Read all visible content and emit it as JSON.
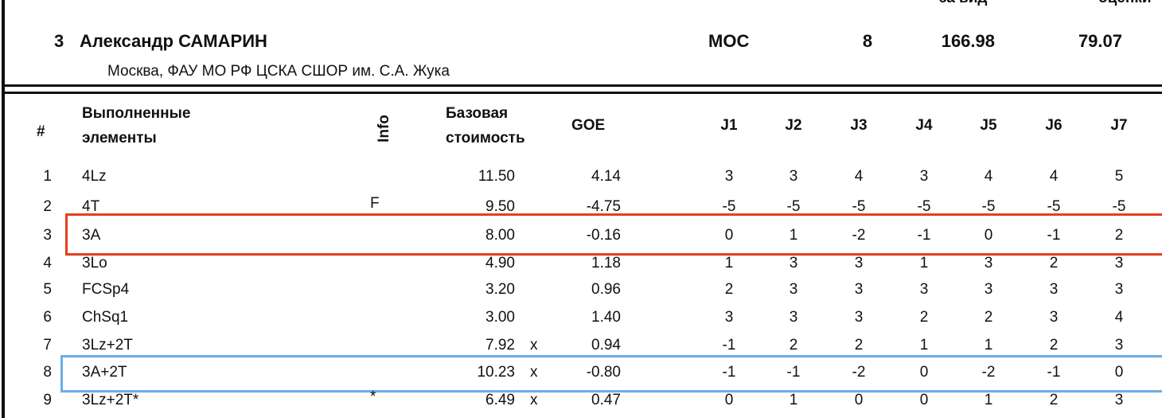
{
  "header": {
    "col_labels": [
      "за вид",
      "оценки"
    ],
    "skater": {
      "rank": "3",
      "name": "Александр САМАРИН",
      "club": "Москва, ФАУ МО РФ ЦСКА СШОР им. С.А. Жука",
      "nation": "MOC",
      "start": "8",
      "total": "166.98",
      "tes": "79.07"
    }
  },
  "table": {
    "columns": {
      "num": "#",
      "element": [
        "Выполненные",
        "элементы"
      ],
      "info": "Info",
      "base": [
        "Базовая",
        "стоимость"
      ],
      "goe": "GOE",
      "judges": [
        "J1",
        "J2",
        "J3",
        "J4",
        "J5",
        "J6",
        "J7"
      ]
    },
    "rows": [
      {
        "num": "1",
        "element": "4Lz",
        "info": "",
        "base": "11.50",
        "bonus": "",
        "goe": "4.14",
        "judges": [
          "3",
          "3",
          "4",
          "3",
          "4",
          "4",
          "5"
        ]
      },
      {
        "num": "2",
        "element": "4T",
        "info": "F",
        "base": "9.50",
        "bonus": "",
        "goe": "-4.75",
        "judges": [
          "-5",
          "-5",
          "-5",
          "-5",
          "-5",
          "-5",
          "-5"
        ]
      },
      {
        "num": "3",
        "element": "3A",
        "info": "",
        "base": "8.00",
        "bonus": "",
        "goe": "-0.16",
        "judges": [
          "0",
          "1",
          "-2",
          "-1",
          "0",
          "-1",
          "2"
        ]
      },
      {
        "num": "4",
        "element": "3Lo",
        "info": "",
        "base": "4.90",
        "bonus": "",
        "goe": "1.18",
        "judges": [
          "1",
          "3",
          "3",
          "1",
          "3",
          "2",
          "3"
        ]
      },
      {
        "num": "5",
        "element": "FCSp4",
        "info": "",
        "base": "3.20",
        "bonus": "",
        "goe": "0.96",
        "judges": [
          "2",
          "3",
          "3",
          "3",
          "3",
          "3",
          "3"
        ]
      },
      {
        "num": "6",
        "element": "ChSq1",
        "info": "",
        "base": "3.00",
        "bonus": "",
        "goe": "1.40",
        "judges": [
          "3",
          "3",
          "3",
          "2",
          "2",
          "3",
          "4"
        ]
      },
      {
        "num": "7",
        "element": "3Lz+2T",
        "info": "",
        "base": "7.92",
        "bonus": "x",
        "goe": "0.94",
        "judges": [
          "-1",
          "2",
          "2",
          "1",
          "1",
          "2",
          "3"
        ]
      },
      {
        "num": "8",
        "element": "3A+2T",
        "info": "",
        "base": "10.23",
        "bonus": "x",
        "goe": "-0.80",
        "judges": [
          "-1",
          "-1",
          "-2",
          "0",
          "-2",
          "-1",
          "0"
        ]
      },
      {
        "num": "9",
        "element": "3Lz+2T*",
        "info": "*",
        "base": "6.49",
        "bonus": "x",
        "goe": "0.47",
        "judges": [
          "0",
          "1",
          "0",
          "0",
          "1",
          "2",
          "3"
        ]
      }
    ]
  }
}
